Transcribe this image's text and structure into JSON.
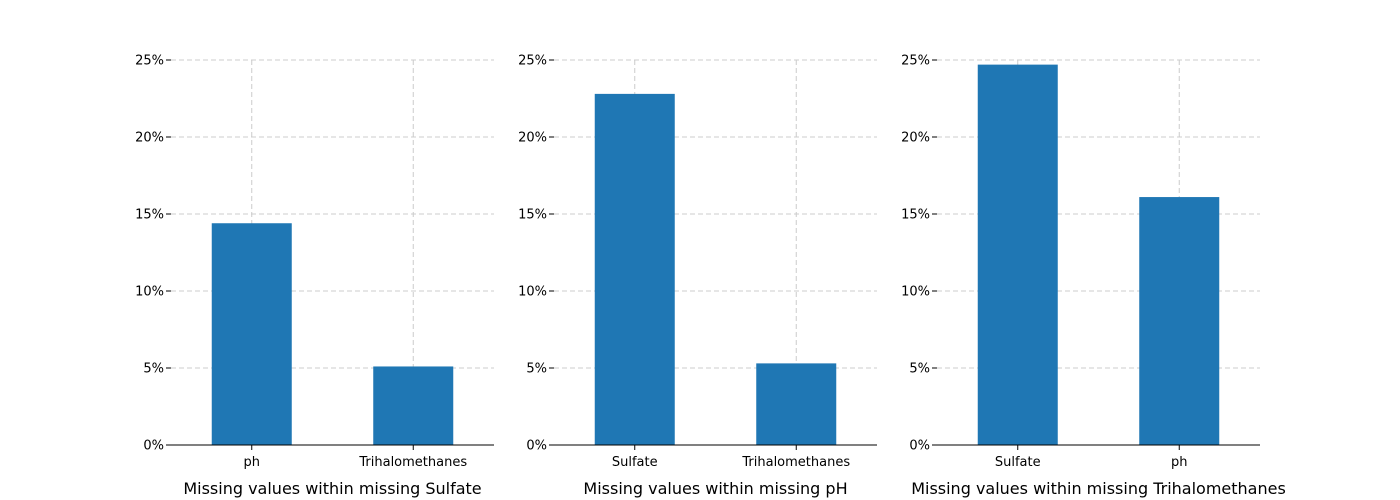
{
  "chart_data": [
    {
      "type": "bar",
      "categories": [
        "ph",
        "Trihalomethanes"
      ],
      "values": [
        14.4,
        5.1
      ],
      "xlabel": "Missing values within missing Sulfate",
      "ylabel": "",
      "ylim": [
        0,
        25
      ],
      "yticks": [
        0,
        5,
        10,
        15,
        20,
        25
      ],
      "ytick_labels": [
        "0%",
        "5%",
        "10%",
        "15%",
        "20%",
        "25%"
      ],
      "grid": true,
      "bar_color": "#1f77b4"
    },
    {
      "type": "bar",
      "categories": [
        "Sulfate",
        "Trihalomethanes"
      ],
      "values": [
        22.8,
        5.3
      ],
      "xlabel": "Missing values within missing pH",
      "ylabel": "",
      "ylim": [
        0,
        25
      ],
      "yticks": [
        0,
        5,
        10,
        15,
        20,
        25
      ],
      "ytick_labels": [
        "0%",
        "5%",
        "10%",
        "15%",
        "20%",
        "25%"
      ],
      "grid": true,
      "bar_color": "#1f77b4"
    },
    {
      "type": "bar",
      "categories": [
        "Sulfate",
        "ph"
      ],
      "values": [
        24.7,
        16.1
      ],
      "xlabel": "Missing values within missing Trihalomethanes",
      "ylabel": "",
      "ylim": [
        0,
        25
      ],
      "yticks": [
        0,
        5,
        10,
        15,
        20,
        25
      ],
      "ytick_labels": [
        "0%",
        "5%",
        "10%",
        "15%",
        "20%",
        "25%"
      ],
      "grid": true,
      "bar_color": "#1f77b4"
    }
  ]
}
